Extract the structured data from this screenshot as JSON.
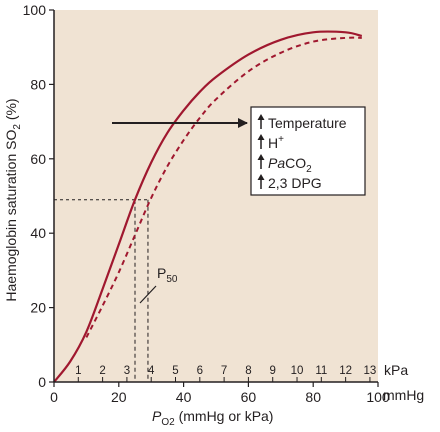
{
  "chart_data": {
    "type": "line",
    "title": "",
    "xlabel_prefix": "P",
    "xlabel_sub": "O",
    "xlabel_sub2": "2",
    "xlabel_rest": " (mmHg or kPa)",
    "ylabel": "Haemoglobin saturation SO",
    "ylabel_sub": "2",
    "ylabel_rest": " (%)",
    "xlim": [
      0,
      100
    ],
    "ylim": [
      0,
      100
    ],
    "x_ticks": [
      0,
      20,
      40,
      60,
      80,
      100
    ],
    "y_ticks": [
      0,
      20,
      40,
      60,
      80,
      100
    ],
    "x_unit": "mmHg",
    "kpa_unit": "kPa",
    "kpa_ticks": [
      "1",
      "2",
      "3",
      "4",
      "5",
      "6",
      "7",
      "8",
      "9",
      "10",
      "11",
      "12",
      "13"
    ],
    "series": [
      {
        "style": "solid",
        "x": [
          0,
          5,
          10,
          15,
          20,
          25,
          30,
          35,
          40,
          45,
          50,
          60,
          70,
          80,
          90,
          95
        ],
        "y": [
          0,
          5.5,
          13.5,
          25,
          37,
          49,
          59,
          67,
          73,
          78,
          82,
          88,
          92,
          94,
          94,
          93
        ]
      },
      {
        "style": "dashed",
        "x": [
          10,
          15,
          20,
          25,
          30,
          35,
          40,
          45,
          50,
          60,
          70,
          80,
          90,
          95
        ],
        "y": [
          12,
          20.5,
          29.5,
          39.5,
          49.5,
          58,
          65,
          71,
          76,
          83.5,
          88.5,
          91.5,
          92.5,
          92.5
        ]
      }
    ],
    "annotations": {
      "p50_label": "P",
      "p50_sub": "50",
      "p50_y": 49,
      "p50_x_solid": 25,
      "p50_x_dashed": 29,
      "shift_factors": [
        {
          "text": "Temperature"
        },
        {
          "text": "H",
          "sup": "+"
        },
        {
          "italic": "Pa",
          "text": "CO",
          "sub": "2"
        },
        {
          "text": "2,3 DPG"
        }
      ]
    },
    "colors": {
      "plot_background": "#f0e3d3",
      "curve": "#a0182f",
      "dashed_curve": "#a0182f",
      "text": "#231f20"
    }
  }
}
